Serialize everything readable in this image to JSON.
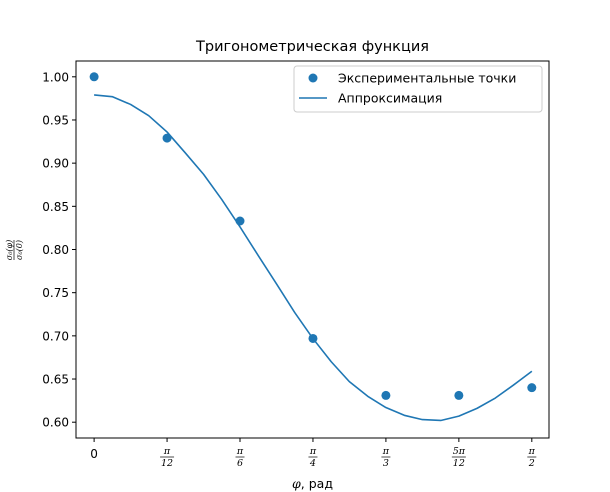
{
  "chart_data": {
    "type": "scatter",
    "title": "Тригонометрическая функция",
    "xlabel": "φ, рад",
    "ylabel_numerator": "σ₀(φ)",
    "ylabel_denominator": "σ₀(0)",
    "xlim": [
      -0.065,
      1.6325
    ],
    "ylim": [
      0.5817,
      1.0183
    ],
    "x_ticks": [
      {
        "value": 0,
        "label": "0"
      },
      {
        "value": 0.261799,
        "label_num": "π",
        "label_den": "12"
      },
      {
        "value": 0.523599,
        "label_num": "π",
        "label_den": "6"
      },
      {
        "value": 0.785398,
        "label_num": "π",
        "label_den": "4"
      },
      {
        "value": 1.047198,
        "label_num": "π",
        "label_den": "3"
      },
      {
        "value": 1.308997,
        "label_num": "5π",
        "label_den": "12"
      },
      {
        "value": 1.570796,
        "label_num": "π",
        "label_den": "2"
      }
    ],
    "y_ticks": [
      {
        "value": 0.6,
        "label": "0.60"
      },
      {
        "value": 0.65,
        "label": "0.65"
      },
      {
        "value": 0.7,
        "label": "0.70"
      },
      {
        "value": 0.75,
        "label": "0.75"
      },
      {
        "value": 0.8,
        "label": "0.80"
      },
      {
        "value": 0.85,
        "label": "0.85"
      },
      {
        "value": 0.9,
        "label": "0.90"
      },
      {
        "value": 0.95,
        "label": "0.95"
      },
      {
        "value": 1.0,
        "label": "1.00"
      }
    ],
    "series": [
      {
        "name": "Экспериментальные точки",
        "kind": "scatter",
        "color": "#1f77b4",
        "points": [
          {
            "x": 0,
            "y": 1.0
          },
          {
            "x": 0.261799,
            "y": 0.929
          },
          {
            "x": 0.523599,
            "y": 0.833
          },
          {
            "x": 0.785398,
            "y": 0.697
          },
          {
            "x": 1.047198,
            "y": 0.631
          },
          {
            "x": 1.308997,
            "y": 0.631
          },
          {
            "x": 1.570796,
            "y": 0.64
          }
        ]
      },
      {
        "name": "Аппроксимация",
        "kind": "line",
        "color": "#1f77b4",
        "points": [
          {
            "x": 0.0,
            "y": 0.979
          },
          {
            "x": 0.065,
            "y": 0.977
          },
          {
            "x": 0.131,
            "y": 0.968
          },
          {
            "x": 0.196,
            "y": 0.955
          },
          {
            "x": 0.262,
            "y": 0.936
          },
          {
            "x": 0.327,
            "y": 0.912
          },
          {
            "x": 0.393,
            "y": 0.887
          },
          {
            "x": 0.458,
            "y": 0.858
          },
          {
            "x": 0.524,
            "y": 0.826
          },
          {
            "x": 0.589,
            "y": 0.793
          },
          {
            "x": 0.655,
            "y": 0.76
          },
          {
            "x": 0.72,
            "y": 0.727
          },
          {
            "x": 0.785,
            "y": 0.697
          },
          {
            "x": 0.851,
            "y": 0.67
          },
          {
            "x": 0.916,
            "y": 0.647
          },
          {
            "x": 0.982,
            "y": 0.63
          },
          {
            "x": 1.047,
            "y": 0.617
          },
          {
            "x": 1.113,
            "y": 0.608
          },
          {
            "x": 1.178,
            "y": 0.603
          },
          {
            "x": 1.244,
            "y": 0.602
          },
          {
            "x": 1.309,
            "y": 0.607
          },
          {
            "x": 1.374,
            "y": 0.616
          },
          {
            "x": 1.44,
            "y": 0.628
          },
          {
            "x": 1.505,
            "y": 0.643
          },
          {
            "x": 1.571,
            "y": 0.659
          }
        ]
      }
    ],
    "legend": {
      "position": "top-right"
    },
    "grid": false
  }
}
